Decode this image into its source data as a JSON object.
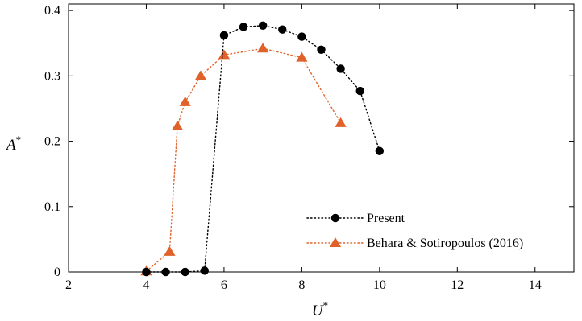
{
  "chart_data": {
    "type": "line",
    "title": "",
    "xlabel": "U",
    "xlabel_sup": "*",
    "ylabel": "A",
    "ylabel_sup": "*",
    "xlim": [
      2,
      15
    ],
    "ylim": [
      0,
      0.41
    ],
    "xticks": [
      2,
      4,
      6,
      8,
      10,
      12,
      14
    ],
    "yticks": [
      0,
      0.1,
      0.2,
      0.3,
      0.4
    ],
    "xtick_labels": [
      "2",
      "4",
      "6",
      "8",
      "10",
      "12",
      "14"
    ],
    "ytick_labels": [
      "0",
      "0.1",
      "0.2",
      "0.3",
      "0.4"
    ],
    "grid": false,
    "legend_position": "bottom-right",
    "series": [
      {
        "name": "Present",
        "color": "#000000",
        "marker": "circle",
        "line_style": "dotted",
        "x": [
          4,
          4.5,
          5,
          5.5,
          6,
          6.5,
          7,
          7.5,
          8,
          8.5,
          9,
          9.5,
          10
        ],
        "y": [
          0,
          0,
          0,
          0.002,
          0.362,
          0.375,
          0.377,
          0.371,
          0.36,
          0.34,
          0.311,
          0.277,
          0.185
        ]
      },
      {
        "name": "Behara & Sotiropoulos (2016)",
        "color": "#e0622a",
        "marker": "triangle",
        "line_style": "dotted",
        "x": [
          4,
          4.6,
          4.8,
          5,
          5.4,
          6,
          7,
          8,
          9
        ],
        "y": [
          0.001,
          0.031,
          0.223,
          0.26,
          0.3,
          0.332,
          0.342,
          0.328,
          0.228
        ]
      }
    ]
  }
}
